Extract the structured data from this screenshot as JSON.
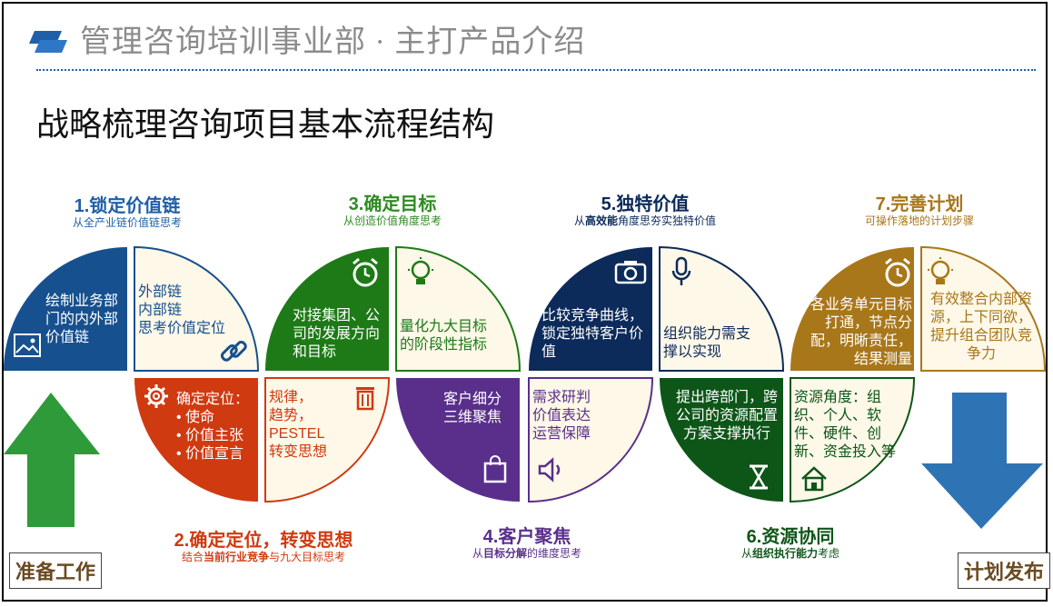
{
  "header": {
    "dept_title": "管理咨询培训事业部 · 主打产品介绍",
    "main_title": "战略梳理咨询项目基本流程结构"
  },
  "colors": {
    "blue": "#17508e",
    "orange": "#d03a10",
    "green": "#1e7a17",
    "purple": "#5a2f8c",
    "navy": "#0c2a5a",
    "darkgreen": "#0d5618",
    "gold": "#a8771a",
    "cream": "#fdf8e8"
  },
  "steps": {
    "s1": {
      "title": "1.锁定价值链",
      "sub": "从全产业链价值链思考",
      "left_text": "绘制业务部门的内外部价值链",
      "right_text": [
        "外部链",
        "内部链",
        "思考价值定位"
      ]
    },
    "s2": {
      "title": "2.确定定位，转变思想",
      "sub_a": "结合",
      "sub_b": "当前行业竞争",
      "sub_c": "与九大目标思考",
      "left_title": "确定定位：",
      "left_items": [
        "使命",
        "价值主张",
        "价值宣言"
      ],
      "right_text": [
        "规律，",
        "趋势，",
        "PESTEL",
        "转变思想"
      ]
    },
    "s3": {
      "title": "3.确定目标",
      "sub": "从创造价值角度思考",
      "left_text": "对接集团、公司的发展方向和目标",
      "right_text": "量化九大目标的阶段性指标"
    },
    "s4": {
      "title": "4.客户聚焦",
      "sub_a": "从",
      "sub_b": "目标分解",
      "sub_c": "的维度思考",
      "left_text": [
        "客户细分",
        "三维聚焦"
      ],
      "right_text": [
        "需求研判",
        "价值表达",
        "运营保障"
      ]
    },
    "s5": {
      "title": "5.独特价值",
      "sub_a": "从",
      "sub_b": "高效能",
      "sub_c": "角度思夯实独特价值",
      "left_text": "比较竞争曲线，锁定独特客户价值",
      "right_text": "组织能力需支撑以实现"
    },
    "s6": {
      "title": "6.资源协同",
      "sub_a": "从",
      "sub_b": "组织执行能力",
      "sub_c": "考虑",
      "left_text": "提出跨部门，跨公司的资源配置方案支撑执行",
      "right_text": "资源角度：组织、个人、软件、硬件、创新、资金投入等"
    },
    "s7": {
      "title": "7.完善计划",
      "sub": "可操作落地的计划步骤",
      "left_text": "各业务单元目标打通，节点分配，明晰责任，结果测量",
      "right_text": "有效整合内部资源，上下同欲，提升组合团队竞争力"
    }
  },
  "corners": {
    "left": "准备工作",
    "right": "计划发布"
  }
}
